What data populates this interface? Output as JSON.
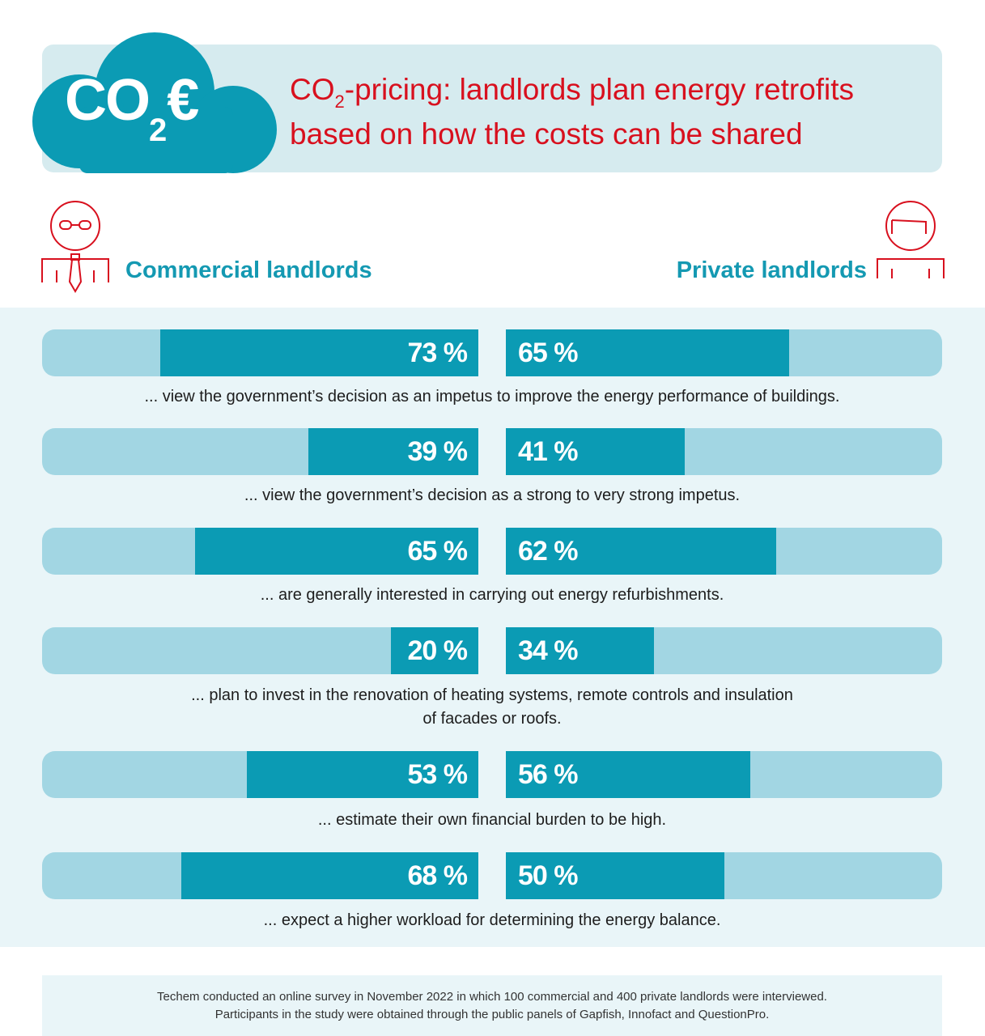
{
  "header": {
    "logo_main": "CO",
    "logo_sub": "2",
    "logo_suffix": "€",
    "title_part1": "CO",
    "title_sub": "2",
    "title_part2": "-pricing: landlords plan energy retrofits",
    "title_line2": "based on how the costs can be shared"
  },
  "groups": {
    "left": "Commercial landlords",
    "right": "Private landlords"
  },
  "chart_data": {
    "type": "bar",
    "orientation": "horizontal-diverging",
    "xlim": [
      0,
      100
    ],
    "unit": "%",
    "series": [
      {
        "name": "Commercial landlords",
        "values": [
          73,
          39,
          65,
          20,
          53,
          68
        ]
      },
      {
        "name": "Private landlords",
        "values": [
          65,
          41,
          62,
          34,
          56,
          50
        ]
      }
    ],
    "labels": {
      "commercial": [
        "73 %",
        "39 %",
        "65 %",
        "20 %",
        "53 %",
        "68 %"
      ],
      "private": [
        "65 %",
        "41 %",
        "62 %",
        "34 %",
        "56 %",
        "50 %"
      ]
    },
    "categories": [
      "... view the government’s decision as an impetus to improve the energy performance of buildings.",
      "... view the government’s decision as a strong to very strong impetus.",
      "... are generally interested in carrying out energy refurbishments.",
      "... plan to invest in the renovation of heating systems, remote controls and insulation of facades or roofs.",
      "... estimate their own financial burden to be high.",
      "... expect a higher workload for determining the energy balance."
    ],
    "caption_lines": [
      [
        "... view the government’s decision as an impetus to improve the energy performance of buildings."
      ],
      [
        "... view the government’s decision as a strong to very strong impetus."
      ],
      [
        "... are generally interested in carrying out energy refurbishments."
      ],
      [
        "... plan to invest in the renovation of heating systems, remote controls and insulation",
        "of facades or roofs."
      ],
      [
        "... estimate their own financial burden to be high."
      ],
      [
        "... expect a higher workload for determining the energy balance."
      ]
    ],
    "colors": {
      "track": "#a2d6e3",
      "fill": "#0b9bb4"
    }
  },
  "footer": {
    "line1": "Techem conducted an online survey in November 2022 in which 100 commercial and 400 private landlords were interviewed.",
    "line2": "Participants in the study were obtained through the public panels of Gapfish, Innofact and QuestionPro."
  },
  "colors": {
    "accent_red": "#d8101e",
    "teal": "#1499b2",
    "header_band": "#d6ebef"
  }
}
